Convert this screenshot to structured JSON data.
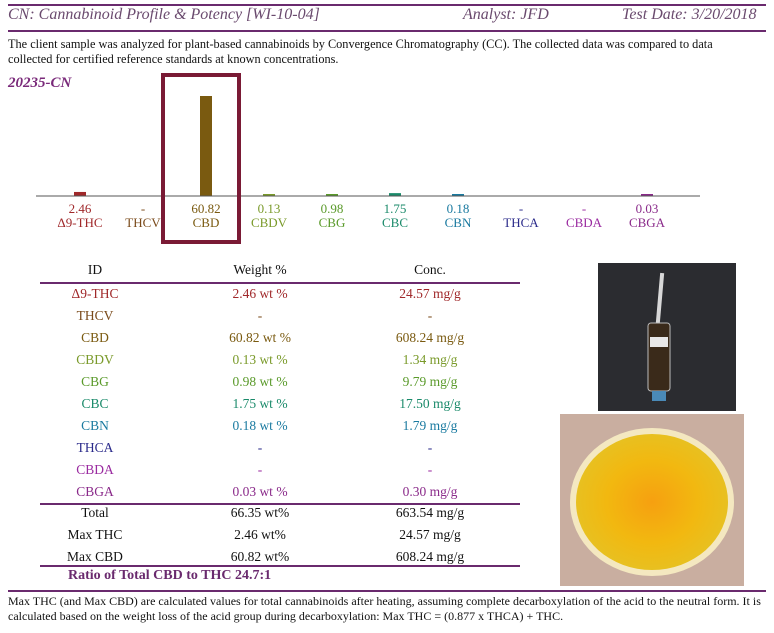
{
  "header": {
    "title": "CN: Cannabinoid Profile & Potency [WI-10-04]",
    "analyst": "Analyst: JFD",
    "test_date": "Test Date: 3/20/2018"
  },
  "intro": "The client sample was analyzed for plant-based cannabinoids by Convergence Chromatography (CC).  The collected data was compared to data collected for certified reference standards at known concentrations.",
  "sample_id": "20235-CN",
  "chart_data": {
    "type": "bar",
    "categories": [
      "Δ9-THC",
      "THCV",
      "CBD",
      "CBDV",
      "CBG",
      "CBC",
      "CBN",
      "THCA",
      "CBDA",
      "CBGA"
    ],
    "value_labels": [
      "2.46",
      "-",
      "60.82",
      "0.13",
      "0.98",
      "1.75",
      "0.18",
      "-",
      "-",
      "0.03"
    ],
    "values": [
      2.46,
      0,
      60.82,
      0.13,
      0.98,
      1.75,
      0.18,
      0,
      0,
      0.03
    ],
    "colors": [
      "#a0282a",
      "#7a4a1a",
      "#7a5a10",
      "#7a9a2a",
      "#5a9a2a",
      "#1a8a6a",
      "#1a7aa0",
      "#2a2a8a",
      "#9a2aa0",
      "#8a2a8a"
    ],
    "highlight": "CBD"
  },
  "table": {
    "headers": [
      "ID",
      "Weight %",
      "Conc."
    ],
    "rows": [
      {
        "id": "Δ9-THC",
        "weight": "2.46 wt %",
        "conc": "24.57 mg/g",
        "color": "#a0282a"
      },
      {
        "id": "THCV",
        "weight": "-",
        "conc": "-",
        "color": "#7a4a1a"
      },
      {
        "id": "CBD",
        "weight": "60.82 wt %",
        "conc": "608.24 mg/g",
        "color": "#7a5a10"
      },
      {
        "id": "CBDV",
        "weight": "0.13 wt %",
        "conc": "1.34 mg/g",
        "color": "#7a9a2a"
      },
      {
        "id": "CBG",
        "weight": "0.98 wt %",
        "conc": "9.79 mg/g",
        "color": "#5a9a2a"
      },
      {
        "id": "CBC",
        "weight": "1.75 wt %",
        "conc": "17.50 mg/g",
        "color": "#1a8a6a"
      },
      {
        "id": "CBN",
        "weight": "0.18 wt %",
        "conc": "1.79 mg/g",
        "color": "#1a7aa0"
      },
      {
        "id": "THCA",
        "weight": "-",
        "conc": "-",
        "color": "#2a2a8a"
      },
      {
        "id": "CBDA",
        "weight": "-",
        "conc": "-",
        "color": "#9a2aa0"
      },
      {
        "id": "CBGA",
        "weight": "0.03 wt %",
        "conc": "0.30 mg/g",
        "color": "#8a2a8a"
      }
    ],
    "totals": [
      {
        "id": "Total",
        "weight": "66.35 wt%",
        "conc": "663.54 mg/g"
      },
      {
        "id": "Max THC",
        "weight": "2.46 wt%",
        "conc": "24.57 mg/g"
      },
      {
        "id": "Max CBD",
        "weight": "60.82 wt%",
        "conc": "608.24 mg/g"
      }
    ]
  },
  "ratio": "Ratio of Total CBD to THC   24.7:1",
  "footnote": "Max THC (and Max CBD) are calculated values for total cannabinoids after heating, assuming complete decarboxylation of the acid to the neutral form. It is calculated based on the weight loss of the acid group during decarboxylation:   Max THC = (0.877 x THCA) + THC."
}
